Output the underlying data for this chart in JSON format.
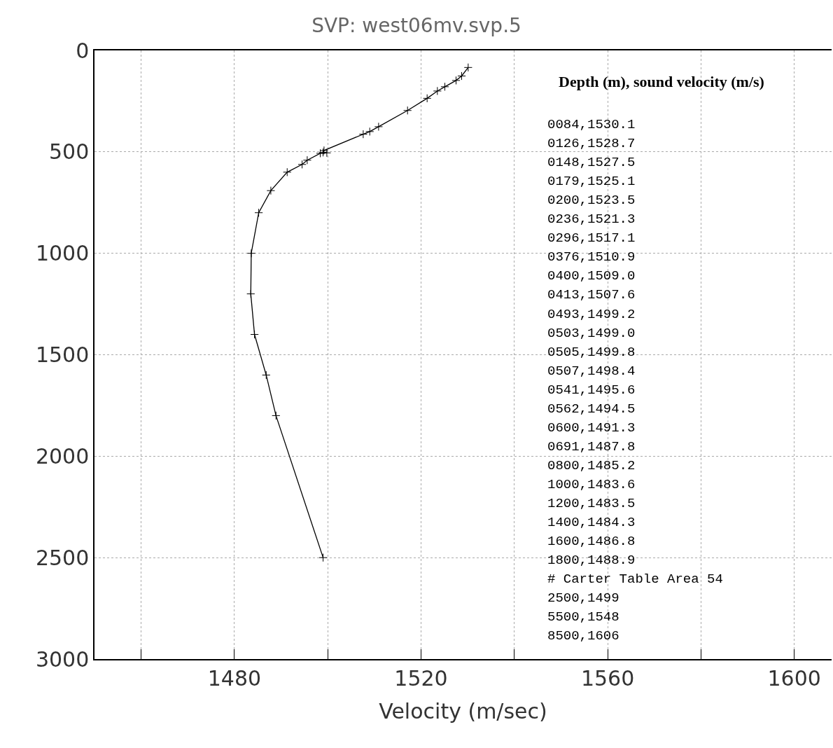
{
  "chart_data": {
    "type": "line",
    "title": "SVP: west06mv.svp.5",
    "xlabel": "Velocity (m/sec)",
    "x": [
      1530.1,
      1528.7,
      1527.5,
      1525.1,
      1523.5,
      1521.3,
      1517.1,
      1510.9,
      1509.0,
      1507.6,
      1499.2,
      1499.0,
      1499.8,
      1498.4,
      1495.6,
      1494.5,
      1491.3,
      1487.8,
      1485.2,
      1483.6,
      1483.5,
      1484.3,
      1486.8,
      1488.9,
      1499
    ],
    "series": [
      {
        "color": "#000000",
        "values": [
          84,
          126,
          148,
          179,
          200,
          236,
          296,
          376,
          400,
          413,
          493,
          503,
          505,
          507,
          541,
          562,
          600,
          691,
          800,
          1000,
          1200,
          1400,
          1600,
          1800,
          2500
        ]
      }
    ],
    "xlim": [
      1450,
      1608
    ],
    "ylim": [
      3000,
      0
    ],
    "xticks": [
      {
        "value": 1460,
        "label": null
      },
      1480,
      {
        "value": 1500,
        "label": null
      },
      1520,
      {
        "value": 1540,
        "label": null
      },
      1560,
      {
        "value": 1580,
        "label": null
      },
      1600
    ],
    "yticks": [
      0,
      500,
      1000,
      1500,
      2000,
      2500,
      3000
    ],
    "grid": true,
    "marker": "cross",
    "line_style": "solid",
    "legend": false,
    "annotations": [
      "Depth (m), sound velocity (m/s)",
      "0084,1530.1",
      "0126,1528.7",
      "0148,1527.5",
      "0179,1525.1",
      "0200,1523.5",
      "0236,1521.3",
      "0296,1517.1",
      "0376,1510.9",
      "0400,1509.0",
      "0413,1507.6",
      "0493,1499.2",
      "0503,1499.0",
      "0505,1499.8",
      "0507,1498.4",
      "0541,1495.6",
      "0562,1494.5",
      "0600,1491.3",
      "0691,1487.8",
      "0800,1485.2",
      "1000,1483.6",
      "1200,1483.5",
      "1400,1484.3",
      "1600,1486.8",
      "1800,1488.9",
      "# Carter Table Area 54",
      "2500,1499",
      "5500,1548",
      "8500,1606"
    ]
  }
}
